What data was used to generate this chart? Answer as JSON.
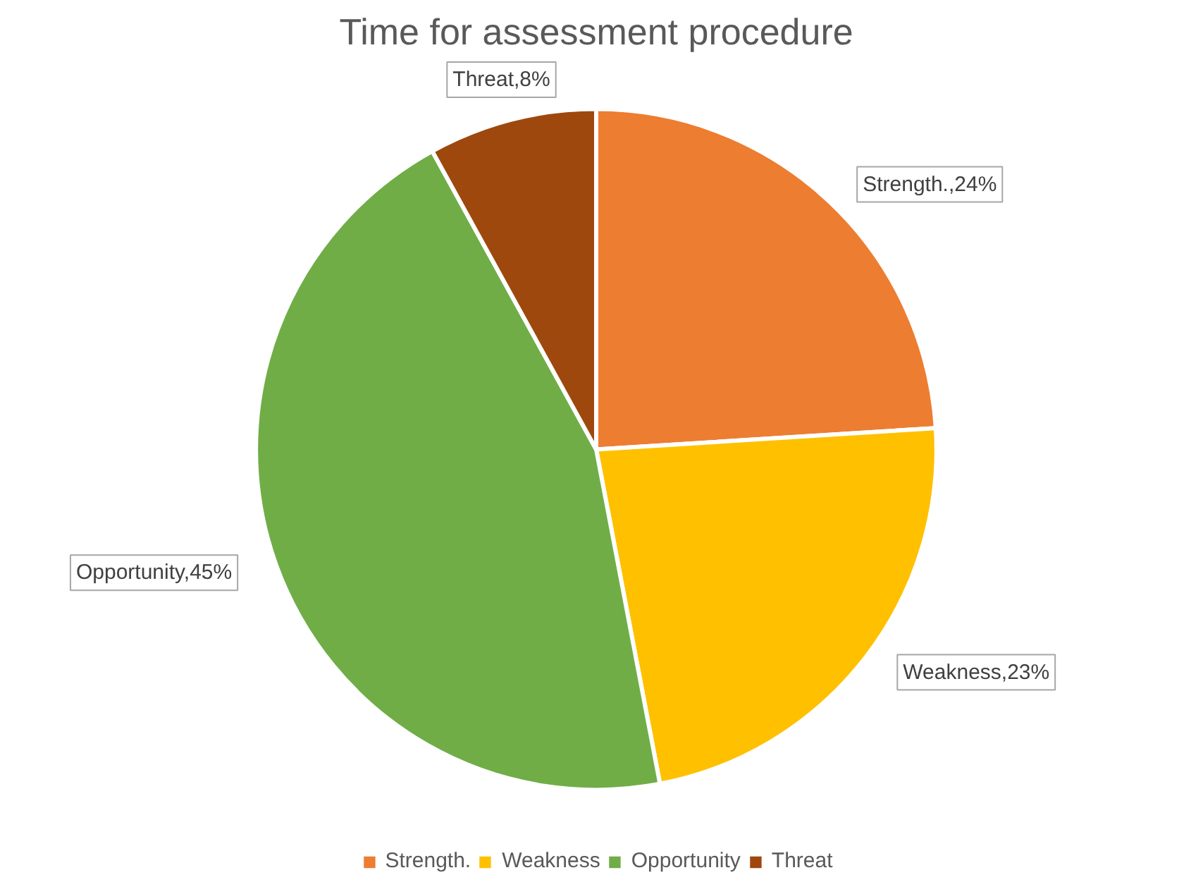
{
  "chart_data": {
    "type": "pie",
    "title": "Time for assessment procedure",
    "categories": [
      "Strength.",
      "Weakness",
      "Opportunity",
      "Threat"
    ],
    "values": [
      24,
      23,
      45,
      8
    ],
    "colors": [
      "#ed7d31",
      "#ffc000",
      "#70ad47",
      "#9e480e"
    ],
    "value_labels": [
      "Strength.,24%",
      "Weakness,23%",
      "Opportunity,45%",
      "Threat,8%"
    ],
    "legend": "bottom"
  }
}
